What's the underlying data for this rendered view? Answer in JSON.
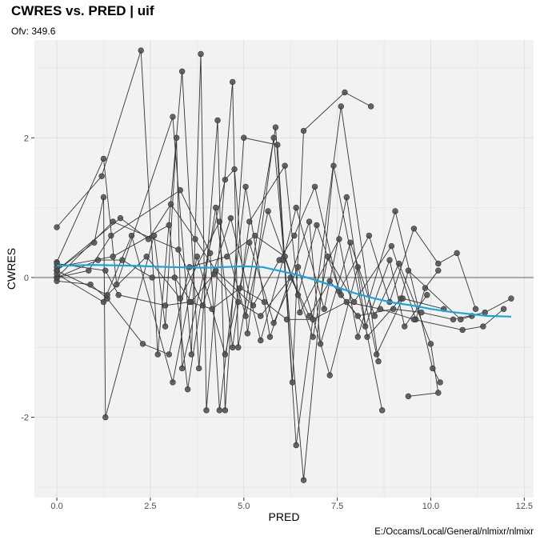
{
  "title": "CWRES vs. PRED | uif",
  "subtitle": "Ofv: 349.6",
  "caption": "E:/Occams/Local/General/nlmixr/nlmixr",
  "colors": {
    "panel": "#f2f2f2",
    "grid": "#e0e0e0",
    "point": "#4d4d4d",
    "line": "#333333",
    "smooth": "#1aa3e0",
    "ref": "#a6a6a6"
  },
  "chart_data": {
    "type": "scatter",
    "xlabel": "PRED",
    "ylabel": "CWRES",
    "xlim": [
      -0.6,
      12.75
    ],
    "ylim": [
      -3.15,
      3.4
    ],
    "xticks": [
      0.0,
      2.5,
      5.0,
      7.5,
      10.0,
      12.5
    ],
    "xtick_labels": [
      "0.0",
      "2.5",
      "5.0",
      "7.5",
      "10.0",
      "12.5"
    ],
    "yticks": [
      -2,
      0,
      2
    ],
    "ytick_labels": [
      "-2",
      "0",
      "2"
    ],
    "reference_line_y": 0,
    "grid": true,
    "subjects": [
      [
        [
          0.0,
          0.72
        ],
        [
          1.2,
          1.45
        ],
        [
          2.25,
          3.25
        ],
        [
          2.7,
          -1.1
        ],
        [
          3.35,
          2.95
        ],
        [
          3.8,
          -1.3
        ],
        [
          4.3,
          2.25
        ],
        [
          4.5,
          -1.9
        ],
        [
          5.0,
          2.0
        ],
        [
          5.9,
          1.9
        ],
        [
          6.3,
          -1.5
        ],
        [
          6.6,
          2.1
        ],
        [
          7.7,
          2.65
        ],
        [
          8.4,
          2.45
        ]
      ],
      [
        [
          0.0,
          0.22
        ],
        [
          1.25,
          1.7
        ],
        [
          1.6,
          -0.1
        ],
        [
          3.1,
          2.3
        ],
        [
          3.6,
          -1.1
        ],
        [
          3.85,
          3.2
        ],
        [
          4.0,
          -1.9
        ],
        [
          4.7,
          2.8
        ],
        [
          4.85,
          -1.0
        ],
        [
          5.85,
          2.15
        ],
        [
          6.4,
          -2.4
        ],
        [
          7.6,
          2.45
        ],
        [
          8.6,
          -1.2
        ]
      ],
      [
        [
          0.0,
          0.1
        ],
        [
          1.0,
          0.5
        ],
        [
          1.25,
          1.15
        ],
        [
          1.3,
          -2.0
        ],
        [
          2.6,
          0.6
        ],
        [
          2.9,
          -0.7
        ],
        [
          3.2,
          2.0
        ],
        [
          3.35,
          -1.3
        ],
        [
          4.5,
          1.4
        ],
        [
          4.75,
          1.55
        ],
        [
          5.1,
          -0.8
        ],
        [
          5.8,
          2.0
        ],
        [
          6.6,
          -2.9
        ],
        [
          7.4,
          1.6
        ],
        [
          8.7,
          -1.9
        ]
      ],
      [
        [
          0.0,
          0.15
        ],
        [
          1.5,
          0.3
        ],
        [
          3.0,
          0.75
        ],
        [
          3.5,
          -1.6
        ],
        [
          4.25,
          1.0
        ],
        [
          4.7,
          -1.0
        ],
        [
          5.15,
          0.8
        ],
        [
          6.1,
          1.6
        ],
        [
          6.5,
          -0.5
        ],
        [
          7.55,
          0.55
        ],
        [
          8.05,
          -0.85
        ],
        [
          9.05,
          0.95
        ],
        [
          10.05,
          -1.3
        ],
        [
          10.25,
          -1.5
        ]
      ],
      [
        [
          0.0,
          0.0
        ],
        [
          0.85,
          0.1
        ],
        [
          1.45,
          0.6
        ],
        [
          3.3,
          1.25
        ],
        [
          4.1,
          0.35
        ],
        [
          4.35,
          -1.9
        ],
        [
          5.05,
          1.3
        ],
        [
          5.7,
          -0.85
        ],
        [
          6.75,
          0.8
        ],
        [
          7.05,
          -0.95
        ],
        [
          7.85,
          0.5
        ],
        [
          8.5,
          -0.55
        ],
        [
          9.15,
          0.2
        ],
        [
          10.0,
          -0.95
        ],
        [
          10.2,
          -1.65
        ],
        [
          9.4,
          -1.7
        ]
      ],
      [
        [
          0.0,
          -0.05
        ],
        [
          0.9,
          -0.1
        ],
        [
          1.35,
          -0.3
        ],
        [
          2.3,
          -0.95
        ],
        [
          3.0,
          -1.1
        ],
        [
          3.55,
          0.15
        ],
        [
          4.55,
          0.3
        ],
        [
          5.3,
          0.6
        ],
        [
          6.1,
          0.3
        ],
        [
          6.85,
          -0.85
        ],
        [
          7.25,
          0.3
        ],
        [
          7.95,
          -0.35
        ],
        [
          8.95,
          0.45
        ],
        [
          9.6,
          -0.6
        ],
        [
          9.85,
          -0.15
        ],
        [
          10.2,
          0.1
        ]
      ],
      [
        [
          0.0,
          0.0
        ],
        [
          1.1,
          0.25
        ],
        [
          1.75,
          0.25
        ],
        [
          2.55,
          0.0
        ],
        [
          3.15,
          0.0
        ],
        [
          3.6,
          -0.35
        ],
        [
          4.2,
          0.05
        ],
        [
          4.85,
          -0.35
        ],
        [
          5.45,
          -0.55
        ],
        [
          6.25,
          0.0
        ],
        [
          6.75,
          -0.55
        ],
        [
          7.3,
          -0.05
        ],
        [
          8.05,
          -0.55
        ],
        [
          9.0,
          -0.45
        ],
        [
          9.75,
          -0.5
        ],
        [
          10.6,
          -0.6
        ],
        [
          11.45,
          -0.5
        ],
        [
          12.15,
          -0.3
        ]
      ],
      [
        [
          0.0,
          0.2
        ],
        [
          1.3,
          0.1
        ],
        [
          1.65,
          -0.25
        ],
        [
          2.9,
          -0.4
        ],
        [
          3.55,
          -0.35
        ],
        [
          4.15,
          -0.45
        ],
        [
          4.9,
          -0.15
        ],
        [
          5.55,
          -0.35
        ],
        [
          6.15,
          -0.6
        ],
        [
          6.85,
          -0.6
        ],
        [
          7.75,
          -0.35
        ],
        [
          8.65,
          -0.45
        ],
        [
          9.55,
          -0.6
        ],
        [
          10.85,
          -0.75
        ],
        [
          11.4,
          -0.7
        ],
        [
          11.95,
          -0.45
        ]
      ],
      [
        [
          0.0,
          0.1
        ],
        [
          1.7,
          0.85
        ],
        [
          2.45,
          0.55
        ],
        [
          3.05,
          1.05
        ],
        [
          3.7,
          0.55
        ],
        [
          4.25,
          0.1
        ],
        [
          5.25,
          -0.4
        ],
        [
          5.95,
          0.25
        ],
        [
          6.35,
          0.6
        ],
        [
          6.9,
          1.3
        ],
        [
          7.55,
          -0.2
        ],
        [
          8.35,
          0.6
        ],
        [
          8.9,
          -0.35
        ],
        [
          9.55,
          0.7
        ],
        [
          10.2,
          0.2
        ],
        [
          10.7,
          0.35
        ],
        [
          11.2,
          -0.45
        ]
      ],
      [
        [
          0.0,
          0.0
        ],
        [
          1.5,
          0.8
        ],
        [
          3.25,
          0.4
        ],
        [
          3.9,
          -0.4
        ],
        [
          4.65,
          0.85
        ],
        [
          5.45,
          -0.9
        ],
        [
          6.05,
          0.25
        ],
        [
          6.4,
          1.0
        ],
        [
          7.15,
          -0.45
        ],
        [
          7.75,
          1.15
        ],
        [
          8.3,
          -0.85
        ],
        [
          9.2,
          -0.3
        ],
        [
          9.4,
          0.1
        ],
        [
          10.8,
          -0.6
        ],
        [
          11.1,
          -0.55
        ]
      ],
      [
        [
          0.0,
          0.05
        ],
        [
          1.25,
          -0.35
        ],
        [
          2.0,
          0.6
        ],
        [
          3.1,
          -1.5
        ],
        [
          3.75,
          0.3
        ],
        [
          4.5,
          -1.1
        ],
        [
          5.15,
          0.5
        ],
        [
          5.8,
          -0.65
        ],
        [
          6.45,
          0.15
        ],
        [
          7.3,
          -1.4
        ],
        [
          8.05,
          0.15
        ],
        [
          8.55,
          -1.1
        ],
        [
          9.25,
          -0.3
        ],
        [
          10.35,
          -0.45
        ]
      ],
      [
        [
          0.0,
          0.1
        ],
        [
          1.35,
          -0.25
        ],
        [
          2.4,
          0.3
        ],
        [
          3.3,
          -0.3
        ],
        [
          4.35,
          0.8
        ],
        [
          5.05,
          -0.55
        ],
        [
          5.65,
          0.95
        ],
        [
          6.45,
          -0.25
        ],
        [
          6.95,
          0.75
        ],
        [
          7.6,
          -0.25
        ],
        [
          8.25,
          -0.7
        ],
        [
          8.9,
          0.25
        ],
        [
          9.3,
          -0.7
        ],
        [
          9.9,
          -0.25
        ]
      ]
    ],
    "smooth": {
      "x": [
        0.0,
        1.0,
        2.0,
        3.0,
        4.0,
        5.0,
        5.5,
        6.0,
        6.5,
        7.0,
        7.5,
        8.0,
        8.5,
        9.0,
        9.5,
        10.0,
        10.5,
        11.0,
        11.5,
        12.15
      ],
      "y": [
        0.17,
        0.18,
        0.17,
        0.15,
        0.14,
        0.16,
        0.15,
        0.09,
        0.03,
        -0.05,
        -0.14,
        -0.23,
        -0.3,
        -0.36,
        -0.4,
        -0.45,
        -0.49,
        -0.52,
        -0.55,
        -0.56
      ]
    }
  }
}
